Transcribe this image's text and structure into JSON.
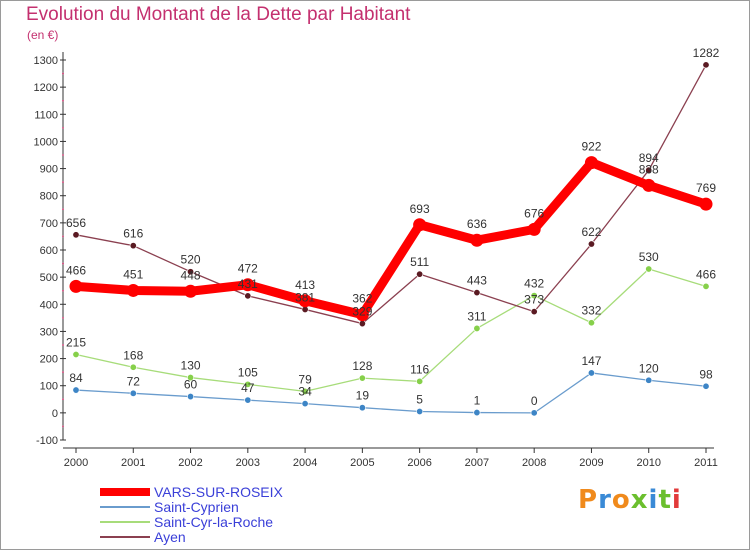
{
  "title": "Evolution du Montant de la Dette par Habitant",
  "subtitle": "(en €)",
  "logo": {
    "text": "Proxiti",
    "colors": [
      "#f08a1c",
      "#3a8ad6",
      "#f08a1c",
      "#6bbf2e",
      "#3a8ad6",
      "#6bbf2e",
      "#e23a3a"
    ]
  },
  "chart_data": {
    "type": "line",
    "title": "Evolution du Montant de la Dette par Habitant",
    "ylabel": "(en €)",
    "x": [
      "2000",
      "2001",
      "2002",
      "2003",
      "2004",
      "2005",
      "2006",
      "2007",
      "2008",
      "2009",
      "2010",
      "2011"
    ],
    "ylim": [
      -100,
      1300
    ],
    "yticks": [
      -100,
      0,
      100,
      200,
      300,
      400,
      500,
      600,
      700,
      800,
      900,
      1000,
      1100,
      1200,
      1300
    ],
    "grid": false,
    "legend_position": "bottom-left",
    "series": [
      {
        "name": "VARS-SUR-ROSEIX",
        "color": "#ff0000",
        "marker": "#ff0000",
        "bold": true,
        "values": [
          466,
          451,
          448,
          472,
          413,
          362,
          693,
          636,
          676,
          922,
          838,
          769
        ],
        "labels": [
          "466",
          "451",
          "448",
          "472",
          "413",
          "362",
          "693",
          "636",
          "676",
          "922",
          "838",
          "769"
        ]
      },
      {
        "name": "Saint-Cyprien",
        "color": "#6a9ccd",
        "marker": "#3d85c6",
        "bold": false,
        "values": [
          84,
          72,
          60,
          47,
          34,
          19,
          5,
          1,
          0,
          147,
          120,
          98
        ],
        "labels": [
          "84",
          "72",
          "60",
          "47",
          "34",
          "19",
          "5",
          "1",
          "0",
          "147",
          "120",
          "98"
        ]
      },
      {
        "name": "Saint-Cyr-la-Roche",
        "color": "#a7dc7a",
        "marker": "#86d04a",
        "bold": false,
        "values": [
          215,
          168,
          130,
          105,
          79,
          128,
          116,
          311,
          432,
          332,
          530,
          466
        ],
        "labels": [
          "215",
          "168",
          "130",
          "105",
          "79",
          "128",
          "116",
          "311",
          "432",
          "332",
          "530",
          "466"
        ]
      },
      {
        "name": "Ayen",
        "color": "#8b4050",
        "marker": "#5a1a22",
        "bold": false,
        "values": [
          656,
          616,
          520,
          431,
          381,
          329,
          511,
          443,
          373,
          622,
          894,
          1282
        ],
        "labels": [
          "656",
          "616",
          "520",
          "431",
          "381",
          "329",
          "511",
          "443",
          "373",
          "622",
          "894",
          "1282"
        ]
      }
    ]
  }
}
